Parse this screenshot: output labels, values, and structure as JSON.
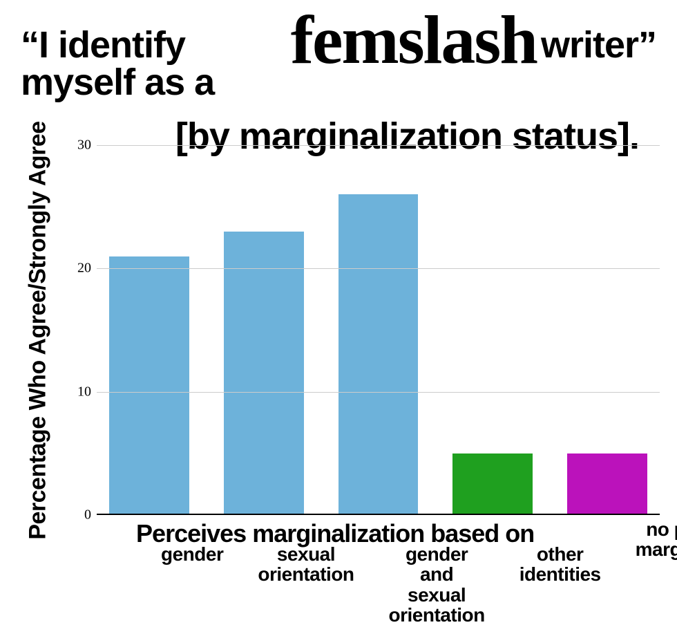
{
  "title": {
    "pre": "“I identify myself as a",
    "script": "femslash",
    "post": "writer”",
    "sub": "[by marginalization status]."
  },
  "chart": {
    "type": "bar",
    "y_label": "Percentage Who Agree/Strongly Agree",
    "ylim": [
      0,
      30
    ],
    "yticks": [
      0,
      10,
      20,
      30
    ],
    "grid_color": "#cccccc",
    "baseline_color": "#000000",
    "background_color": "#ffffff",
    "tick_fontsize": 20,
    "group_label": "Perceives marginalization based on",
    "group_label_left_pct": 7,
    "bars": [
      {
        "label": "gender",
        "value": 21,
        "color": "#6db2da"
      },
      {
        "label": "sexual\norientation",
        "value": 23,
        "color": "#6db2da"
      },
      {
        "label": "gender\nand\nsexual\norientation",
        "value": 26,
        "color": "#6db2da"
      },
      {
        "label": "other\nidentities",
        "value": 5,
        "color": "#1fa01f"
      },
      {
        "label": "no perceived\nmarginalization",
        "value": 5,
        "color": "#bb12bb",
        "label_shift_up": true
      }
    ]
  }
}
